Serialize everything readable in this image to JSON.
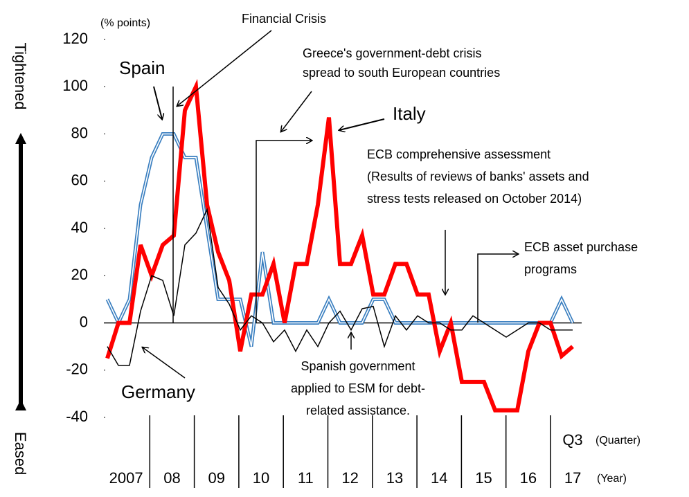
{
  "chart_data": {
    "type": "line",
    "y_unit": "(% points)",
    "x_unit_quarter": "(Quarter)",
    "x_unit_year": "(Year)",
    "categories": [
      null,
      null,
      null,
      null,
      null,
      null,
      null,
      null,
      null,
      null,
      null,
      null,
      null,
      null,
      null,
      null,
      null,
      null,
      null,
      null,
      null,
      null,
      null,
      null,
      null,
      null,
      null,
      null,
      null,
      null,
      null,
      null,
      null,
      null,
      null,
      null,
      null,
      null,
      null,
      null,
      null,
      null,
      "Q3"
    ],
    "years": [
      "2007",
      "08",
      "09",
      "10",
      "11",
      "12",
      "13",
      "14",
      "15",
      "16",
      "17"
    ],
    "ylim": [
      -40,
      120
    ],
    "yticks": [
      -40,
      -20,
      0,
      20,
      40,
      60,
      80,
      100,
      120
    ],
    "axis_labels": {
      "top": "Tightened",
      "bottom": "Eased"
    },
    "series": [
      {
        "name": "Spain",
        "color": "#3a7fc0",
        "style": "double",
        "values": [
          10,
          0,
          10,
          50,
          70,
          80,
          80,
          70,
          70,
          40,
          10,
          10,
          10,
          -10,
          30,
          0,
          0,
          0,
          0,
          0,
          10,
          0,
          0,
          0,
          10,
          10,
          0,
          0,
          0,
          0,
          0,
          0,
          0,
          0,
          0,
          0,
          0,
          0,
          0,
          0,
          0,
          10,
          0
        ]
      },
      {
        "name": "Italy",
        "color": "#ff0000",
        "style": "thick",
        "values": [
          -15,
          0,
          0,
          33,
          20,
          33,
          37,
          90,
          100,
          50,
          30,
          18,
          -12,
          12,
          12,
          25,
          0,
          25,
          25,
          50,
          87,
          25,
          25,
          37,
          12,
          12,
          25,
          25,
          12,
          12,
          -12,
          0,
          -25,
          -25,
          -25,
          -37,
          -37,
          -37,
          -12,
          0,
          0,
          -14,
          -10
        ]
      },
      {
        "name": "Germany",
        "color": "#000000",
        "style": "thin",
        "values": [
          -10,
          -18,
          -18,
          5,
          20,
          18,
          3,
          33,
          38,
          48,
          15,
          8,
          -3,
          3,
          0,
          -8,
          -3,
          -12,
          -3,
          -10,
          0,
          5,
          -3,
          6,
          7,
          -10,
          3,
          -3,
          3,
          0,
          0,
          -3,
          -3,
          3,
          0,
          -3,
          -6,
          -3,
          0,
          0,
          -3,
          -3,
          -3
        ]
      }
    ],
    "annotations": {
      "financial_crisis": "Financial Crisis",
      "greece": [
        "Greece's government-debt crisis",
        "spread to south European countries"
      ],
      "ecb_assessment": [
        "ECB comprehensive assessment",
        "(Results of reviews of banks' assets and",
        "stress tests released on October 2014)"
      ],
      "ecb_purchase": [
        "ECB asset purchase",
        "programs"
      ],
      "spain_esm": [
        "Spanish government",
        "applied to ESM for debt-",
        "related assistance."
      ]
    }
  }
}
